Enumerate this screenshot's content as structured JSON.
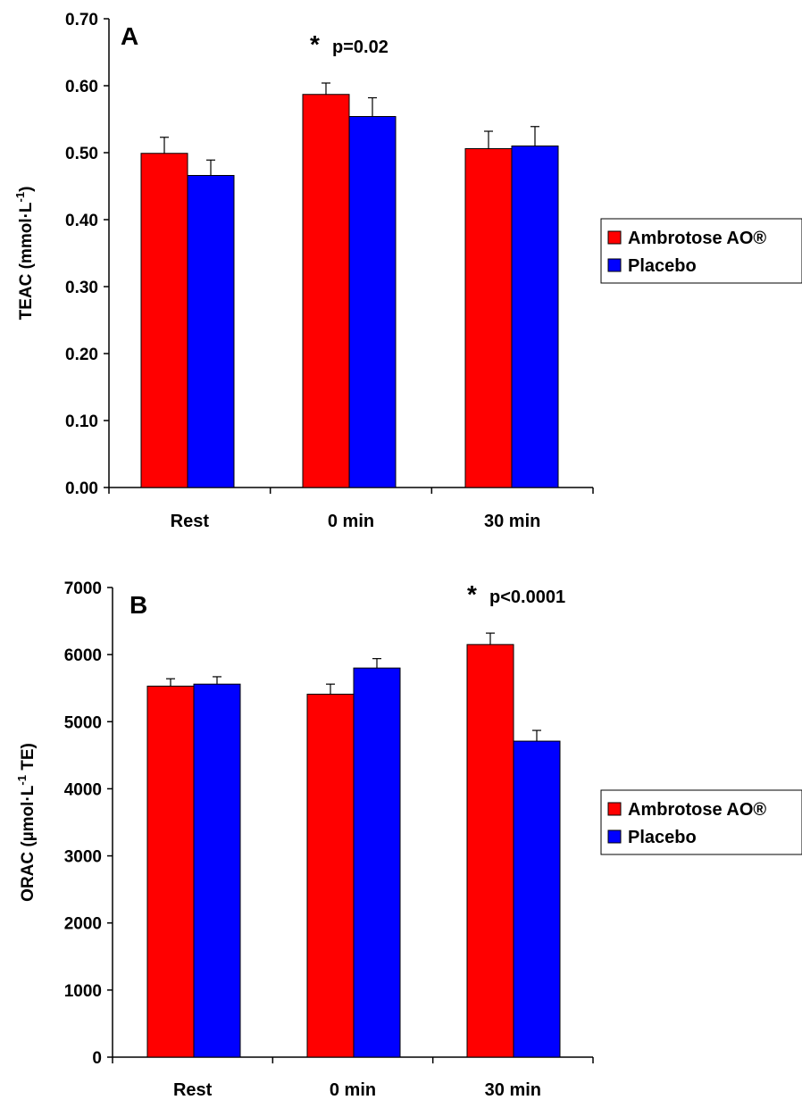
{
  "colors": {
    "series_1": "#ff0000",
    "series_2": "#0000ff"
  },
  "chart_data": [
    {
      "type": "bar",
      "panel_label": "A",
      "ylabel": "TEAC (mmol·L⁻¹)",
      "ylabel_base": "TEAC (mmol·L",
      "ylabel_sup": "-1",
      "ylabel_tail": ")",
      "ylim": [
        0,
        0.7
      ],
      "yticks": [
        0.0,
        0.1,
        0.2,
        0.3,
        0.4,
        0.5,
        0.6,
        0.7
      ],
      "ytick_labels": [
        "0.00",
        "0.10",
        "0.20",
        "0.30",
        "0.40",
        "0.50",
        "0.60",
        "0.70"
      ],
      "categories": [
        "Rest",
        "0 min",
        "30 min"
      ],
      "series": [
        {
          "name": "Ambrotose AO®",
          "values": [
            0.499,
            0.587,
            0.506
          ],
          "errors": [
            0.024,
            0.017,
            0.026
          ]
        },
        {
          "name": "Placebo",
          "values": [
            0.466,
            0.554,
            0.51
          ],
          "errors": [
            0.023,
            0.028,
            0.029
          ]
        }
      ],
      "annotations": [
        {
          "category_index": 1,
          "star": "*",
          "text": "p=0.02"
        }
      ],
      "legend": {
        "position": "right",
        "entries": [
          "Ambrotose AO®",
          "Placebo"
        ]
      },
      "grid": false
    },
    {
      "type": "bar",
      "panel_label": "B",
      "ylabel": "ORAC (µmol·L⁻¹ TE)",
      "ylabel_base": "ORAC (µmol·L",
      "ylabel_sup": "-1",
      "ylabel_tail": " TE)",
      "ylim": [
        0,
        7000
      ],
      "yticks": [
        0,
        1000,
        2000,
        3000,
        4000,
        5000,
        6000,
        7000
      ],
      "ytick_labels": [
        "0",
        "1000",
        "2000",
        "3000",
        "4000",
        "5000",
        "6000",
        "7000"
      ],
      "categories": [
        "Rest",
        "0 min",
        "30 min"
      ],
      "series": [
        {
          "name": "Ambrotose AO®",
          "values": [
            5530,
            5410,
            6150
          ],
          "errors": [
            110,
            150,
            170
          ]
        },
        {
          "name": "Placebo",
          "values": [
            5560,
            5800,
            4710
          ],
          "errors": [
            110,
            140,
            160
          ]
        }
      ],
      "annotations": [
        {
          "category_index": 2,
          "star": "*",
          "text": "p<0.0001"
        }
      ],
      "legend": {
        "position": "right",
        "entries": [
          "Ambrotose AO®",
          "Placebo"
        ]
      },
      "grid": false
    }
  ]
}
